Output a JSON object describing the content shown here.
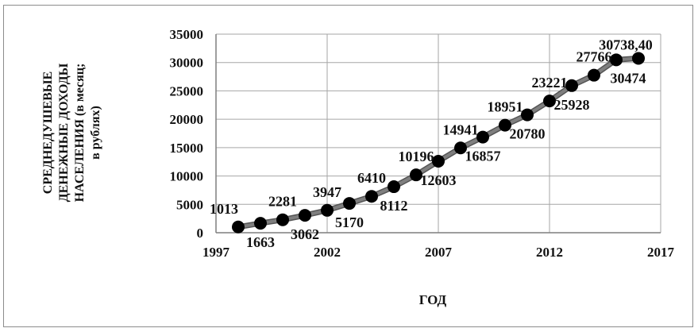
{
  "chart_data": {
    "type": "line",
    "xlabel": "ГОД",
    "ylabel_lines": [
      "СРЕДНЕДУШЕВЫЕ",
      "ДЕНЕЖНЫЕ ДОХОДЫ",
      "НАСЕЛЕНИЯ (в месяц;",
      "в рублях)"
    ],
    "xlim": [
      1997,
      2017
    ],
    "ylim": [
      0,
      35000
    ],
    "x_ticks": [
      "1997",
      "2002",
      "2007",
      "2012",
      "2017"
    ],
    "y_ticks": [
      "0",
      "5000",
      "10000",
      "15000",
      "20000",
      "25000",
      "30000",
      "35000"
    ],
    "grid": true,
    "legend": false,
    "line_color": "#7f7f7f",
    "marker_color": "#000000",
    "series": [
      {
        "x": [
          1998,
          1999,
          2000,
          2001,
          2002,
          2003,
          2004,
          2005,
          2006,
          2007,
          2008,
          2009,
          2010,
          2011,
          2012,
          2013,
          2014,
          2015,
          2016
        ],
        "values": [
          1013,
          1663,
          2281,
          3062,
          3947,
          5170,
          6410,
          8112,
          10196,
          12603,
          14941,
          16857,
          18951,
          20780,
          23221,
          25928,
          27766,
          30474,
          30738.4
        ]
      }
    ],
    "data_labels": [
      "1013",
      "1663",
      "2281",
      "3062",
      "3947",
      "5170",
      "6410",
      "8112",
      "10196",
      "12603",
      "14941",
      "16857",
      "18951",
      "20780",
      "23221",
      "25928",
      "27766",
      "30474",
      "30738,40"
    ]
  }
}
